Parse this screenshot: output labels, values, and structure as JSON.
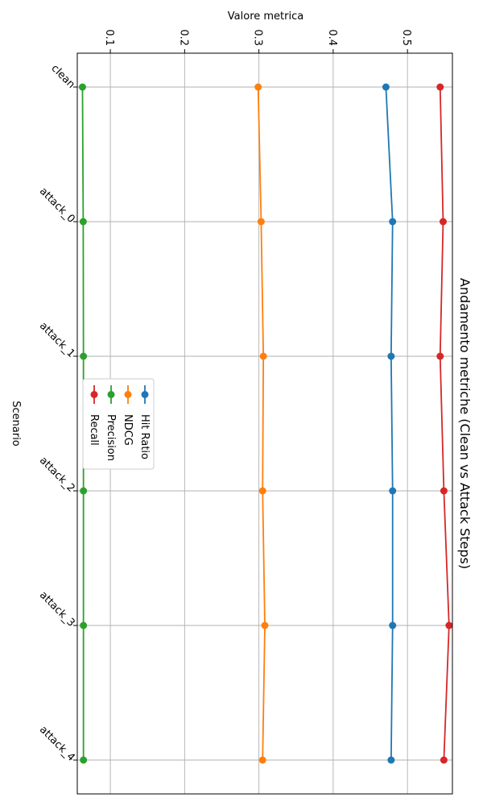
{
  "chart_data": {
    "type": "line",
    "title": "Andamento metriche (Clean vs Attack Steps)",
    "xlabel": "Scenario",
    "ylabel": "Valore metrica",
    "categories": [
      "clean",
      "attack_0",
      "attack_1",
      "attack_2",
      "attack_3",
      "attack_4"
    ],
    "ylim": [
      0.0555,
      0.5605
    ],
    "yticks": [
      0.1,
      0.2,
      0.3,
      0.4,
      0.5
    ],
    "ytick_labels": [
      "0.1",
      "0.2",
      "0.3",
      "0.4",
      "0.5"
    ],
    "grid": true,
    "legend_position": "center-left",
    "series": [
      {
        "name": "Hit Ratio",
        "color": "#1f77b4",
        "values": [
          0.471,
          0.48,
          0.478,
          0.48,
          0.48,
          0.478
        ]
      },
      {
        "name": "NDCG",
        "color": "#ff7f0e",
        "values": [
          0.299,
          0.303,
          0.306,
          0.305,
          0.308,
          0.305
        ]
      },
      {
        "name": "Precision",
        "color": "#2ca02c",
        "values": [
          0.0625,
          0.0635,
          0.0638,
          0.0638,
          0.0638,
          0.0638
        ]
      },
      {
        "name": "Recall",
        "color": "#d62728",
        "values": [
          0.544,
          0.548,
          0.544,
          0.549,
          0.556,
          0.549
        ]
      }
    ]
  }
}
